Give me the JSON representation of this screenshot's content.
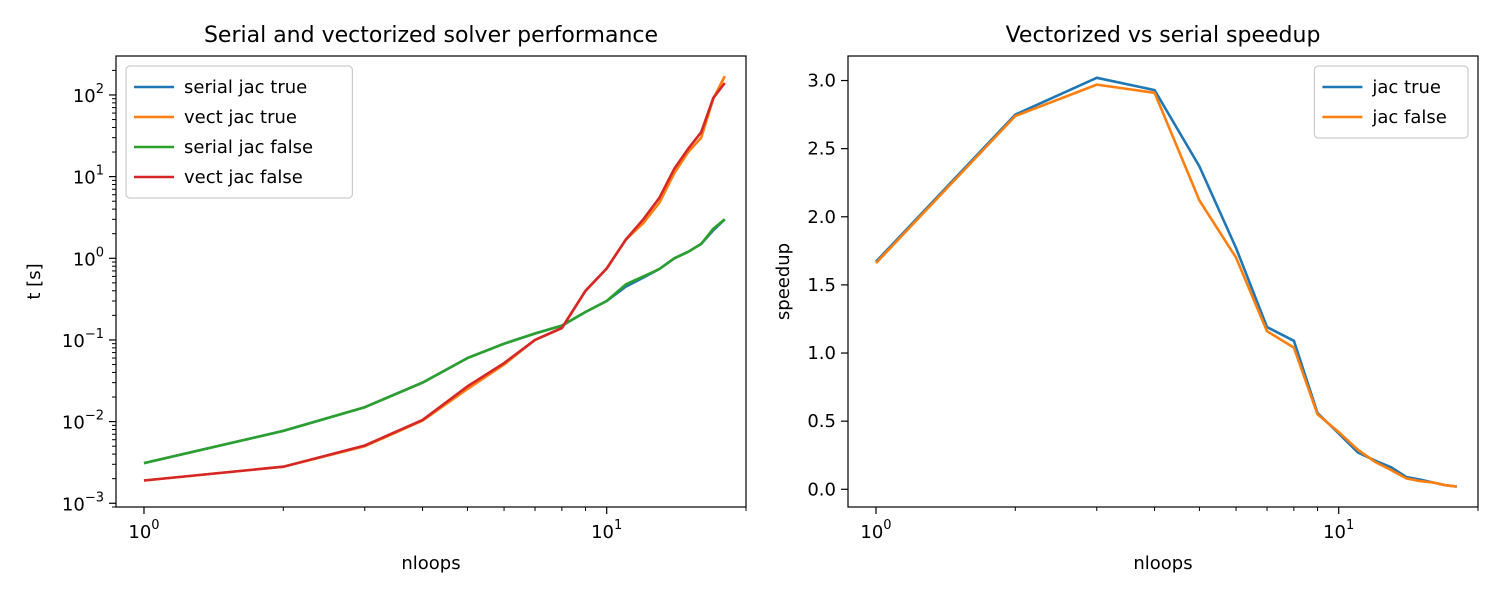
{
  "chart_data": [
    {
      "type": "line",
      "title": "Serial and vectorized solver performance",
      "xlabel": "nloops",
      "ylabel": "t [s]",
      "xscale": "log",
      "yscale": "log",
      "xlim": [
        0.87,
        20
      ],
      "ylim": [
        0.0009,
        300
      ],
      "xticks": [
        {
          "value": 1,
          "base": "10",
          "exp": "0"
        },
        {
          "value": 10,
          "base": "10",
          "exp": "1"
        }
      ],
      "yticks": [
        {
          "value": 0.001,
          "base": "10",
          "exp": "−3"
        },
        {
          "value": 0.01,
          "base": "10",
          "exp": "−2"
        },
        {
          "value": 0.1,
          "base": "10",
          "exp": "−1"
        },
        {
          "value": 1,
          "base": "10",
          "exp": "0"
        },
        {
          "value": 10,
          "base": "10",
          "exp": "1"
        },
        {
          "value": 100,
          "base": "10",
          "exp": "2"
        }
      ],
      "legend": "upper-left",
      "grid": false,
      "x": [
        0,
        1,
        2,
        3,
        4,
        5,
        6,
        7,
        8,
        9,
        10,
        11,
        12,
        13,
        14,
        15,
        16,
        17,
        18
      ],
      "series": [
        {
          "name": "serial jac true",
          "color": "#1f77b4",
          "values": [
            0.0031,
            0.0031,
            0.0077,
            0.015,
            0.03,
            0.06,
            0.09,
            0.12,
            0.15,
            0.22,
            0.3,
            0.45,
            0.58,
            0.74,
            1.0,
            1.2,
            1.5,
            2.2,
            3.0
          ]
        },
        {
          "name": "vect jac true",
          "color": "#ff7f0e",
          "values": [
            0.0019,
            0.0019,
            0.0028,
            0.005,
            0.0103,
            0.025,
            0.05,
            0.1,
            0.14,
            0.4,
            0.75,
            1.7,
            2.7,
            4.8,
            11.0,
            20.0,
            30.0,
            90.0,
            170.0
          ]
        },
        {
          "name": "serial jac false",
          "color": "#2ca02c",
          "values": [
            0.0031,
            0.0031,
            0.0077,
            0.015,
            0.03,
            0.06,
            0.09,
            0.12,
            0.15,
            0.22,
            0.3,
            0.48,
            0.6,
            0.74,
            1.0,
            1.2,
            1.5,
            2.3,
            3.0
          ]
        },
        {
          "name": "vect jac false",
          "color": "#d62728",
          "values": [
            0.0019,
            0.0019,
            0.0028,
            0.0051,
            0.0105,
            0.027,
            0.052,
            0.1,
            0.14,
            0.4,
            0.75,
            1.7,
            3.0,
            5.5,
            12.5,
            22.0,
            35.0,
            92.0,
            140.0
          ]
        }
      ]
    },
    {
      "type": "line",
      "title": "Vectorized vs serial speedup",
      "xlabel": "nloops",
      "ylabel": "speedup",
      "xscale": "log",
      "yscale": "linear",
      "xlim": [
        0.87,
        20
      ],
      "ylim": [
        -0.13,
        3.18
      ],
      "xticks": [
        {
          "value": 1,
          "base": "10",
          "exp": "0"
        },
        {
          "value": 10,
          "base": "10",
          "exp": "1"
        }
      ],
      "yticks": [
        {
          "value": 0.0,
          "label": "0.0"
        },
        {
          "value": 0.5,
          "label": "0.5"
        },
        {
          "value": 1.0,
          "label": "1.0"
        },
        {
          "value": 1.5,
          "label": "1.5"
        },
        {
          "value": 2.0,
          "label": "2.0"
        },
        {
          "value": 2.5,
          "label": "2.5"
        },
        {
          "value": 3.0,
          "label": "3.0"
        }
      ],
      "legend": "upper-right",
      "grid": false,
      "x": [
        0,
        1,
        2,
        3,
        4,
        5,
        6,
        7,
        8,
        9,
        10,
        11,
        12,
        13,
        14,
        15,
        16,
        17,
        18
      ],
      "series": [
        {
          "name": "jac true",
          "color": "#1f77b4",
          "values": [
            1.67,
            1.67,
            2.75,
            3.02,
            2.93,
            2.37,
            1.77,
            1.19,
            1.09,
            0.56,
            0.41,
            0.27,
            0.21,
            0.16,
            0.09,
            0.07,
            0.05,
            0.03,
            0.02
          ]
        },
        {
          "name": "jac false",
          "color": "#ff7f0e",
          "values": [
            1.66,
            1.66,
            2.74,
            2.97,
            2.91,
            2.12,
            1.7,
            1.16,
            1.04,
            0.55,
            0.42,
            0.29,
            0.2,
            0.14,
            0.08,
            0.06,
            0.05,
            0.03,
            0.02
          ]
        }
      ]
    }
  ]
}
